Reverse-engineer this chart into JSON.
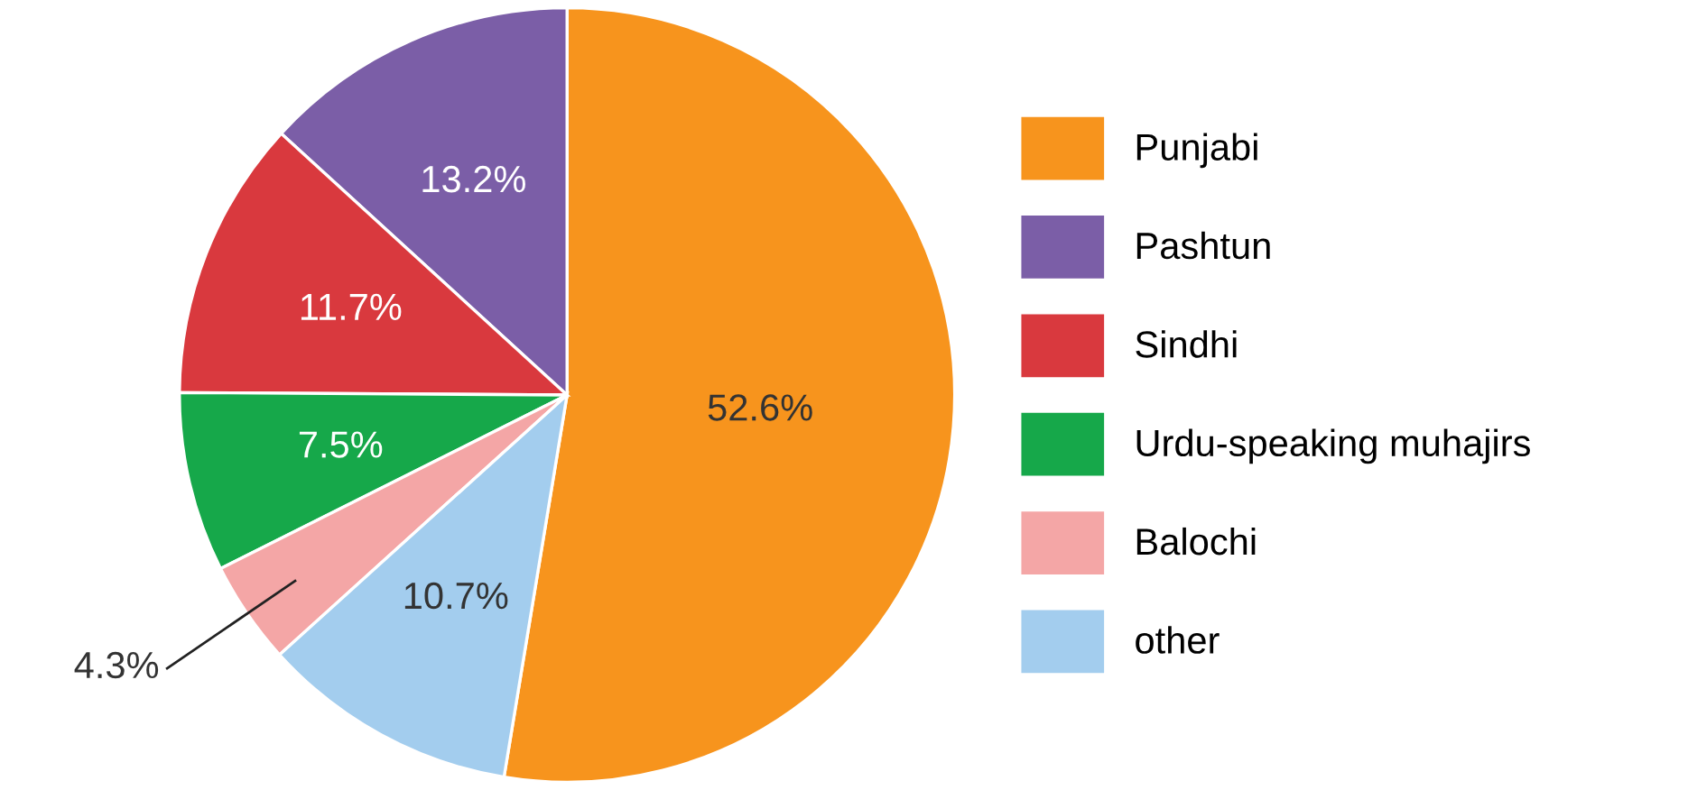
{
  "chart_data": {
    "type": "pie",
    "categories": [
      "Punjabi",
      "Pashtun",
      "Sindhi",
      "Urdu-speaking muhajirs",
      "Balochi",
      "other"
    ],
    "values": [
      52.6,
      13.2,
      11.7,
      7.5,
      4.3,
      10.7
    ],
    "colors": [
      "#f7941d",
      "#7b5ea7",
      "#d9393e",
      "#16a84a",
      "#f4a6a6",
      "#a3cdee"
    ],
    "value_labels": [
      "52.6%",
      "13.2%",
      "11.7%",
      "7.5%",
      "4.3%",
      "10.7%"
    ],
    "legend": "right"
  }
}
